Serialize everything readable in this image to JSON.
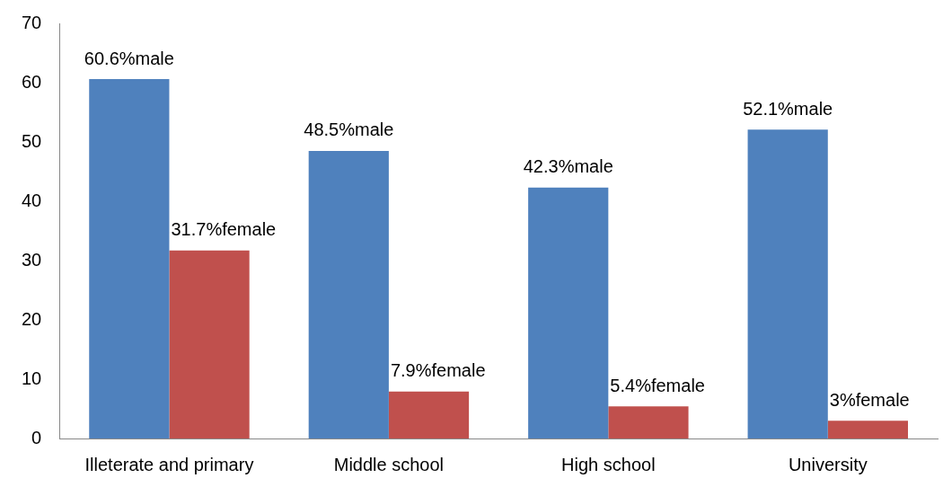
{
  "chart_data": {
    "type": "bar",
    "categories": [
      "Illeterate and primary",
      "Middle school",
      "High school",
      "University"
    ],
    "series": [
      {
        "color": "#4f81bd",
        "values": [
          60.6,
          48.5,
          42.3,
          52.1
        ],
        "value_labels": [
          "60.6%male",
          "48.5%male",
          "42.3%male",
          "52.1%male"
        ]
      },
      {
        "color": "#c0504d",
        "values": [
          31.7,
          7.9,
          5.4,
          3
        ],
        "value_labels": [
          "31.7%female",
          "7.9%female",
          "5.4%female",
          "3%female"
        ]
      }
    ],
    "ylim": [
      0,
      70
    ],
    "yticks": [
      0,
      10,
      20,
      30,
      40,
      50,
      60,
      70
    ],
    "grid": false,
    "legend": false
  }
}
